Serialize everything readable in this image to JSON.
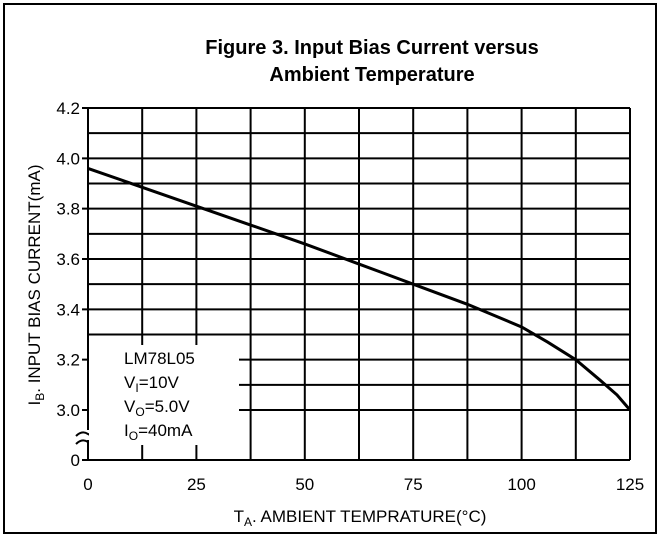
{
  "chart_data": {
    "type": "line",
    "title": [
      "Figure 3. Input Bias Current versus",
      "Ambient Temperature"
    ],
    "x_label": {
      "main": "T",
      "sub": "A",
      "rest": ". AMBIENT TEMPRATURE(°C)"
    },
    "y_label": {
      "main": "I",
      "sub": "B",
      "rest": ". INPUT BIAS CURRENT(mA)"
    },
    "xlim": [
      0,
      125
    ],
    "xticks": [
      0,
      25,
      50,
      75,
      100,
      125
    ],
    "x_minor_ticks": [
      12.5,
      37.5,
      62.5,
      87.5,
      112.5
    ],
    "ylim": [
      3.0,
      4.2
    ],
    "yticks": [
      0,
      {
        "value": 3.0,
        "label": "3.0"
      },
      3.2,
      3.4,
      3.6,
      3.8,
      {
        "value": 4.0,
        "label": "4.0"
      },
      4.2
    ],
    "y_minor_ticks": [
      3.1,
      3.3,
      3.5,
      3.7,
      3.9,
      4.1
    ],
    "axis_break": true,
    "grid": true,
    "series": [
      {
        "name": "LM78L05",
        "color": "#000000",
        "x": [
          0,
          12.5,
          25,
          37.5,
          50,
          62.5,
          75,
          87.5,
          100,
          106,
          112.5,
          118,
          122,
          125
        ],
        "values": [
          3.96,
          3.885,
          3.81,
          3.735,
          3.66,
          3.58,
          3.5,
          3.42,
          3.33,
          3.27,
          3.2,
          3.12,
          3.06,
          3.0
        ]
      }
    ],
    "annotations": [
      {
        "main": "LM78L05",
        "sub": "",
        "rest": ""
      },
      {
        "main": "V",
        "sub": "I",
        "rest": "=10V"
      },
      {
        "main": "V",
        "sub": "O",
        "rest": "=5.0V"
      },
      {
        "main": "I",
        "sub": "O",
        "rest": "=40mA"
      }
    ]
  }
}
